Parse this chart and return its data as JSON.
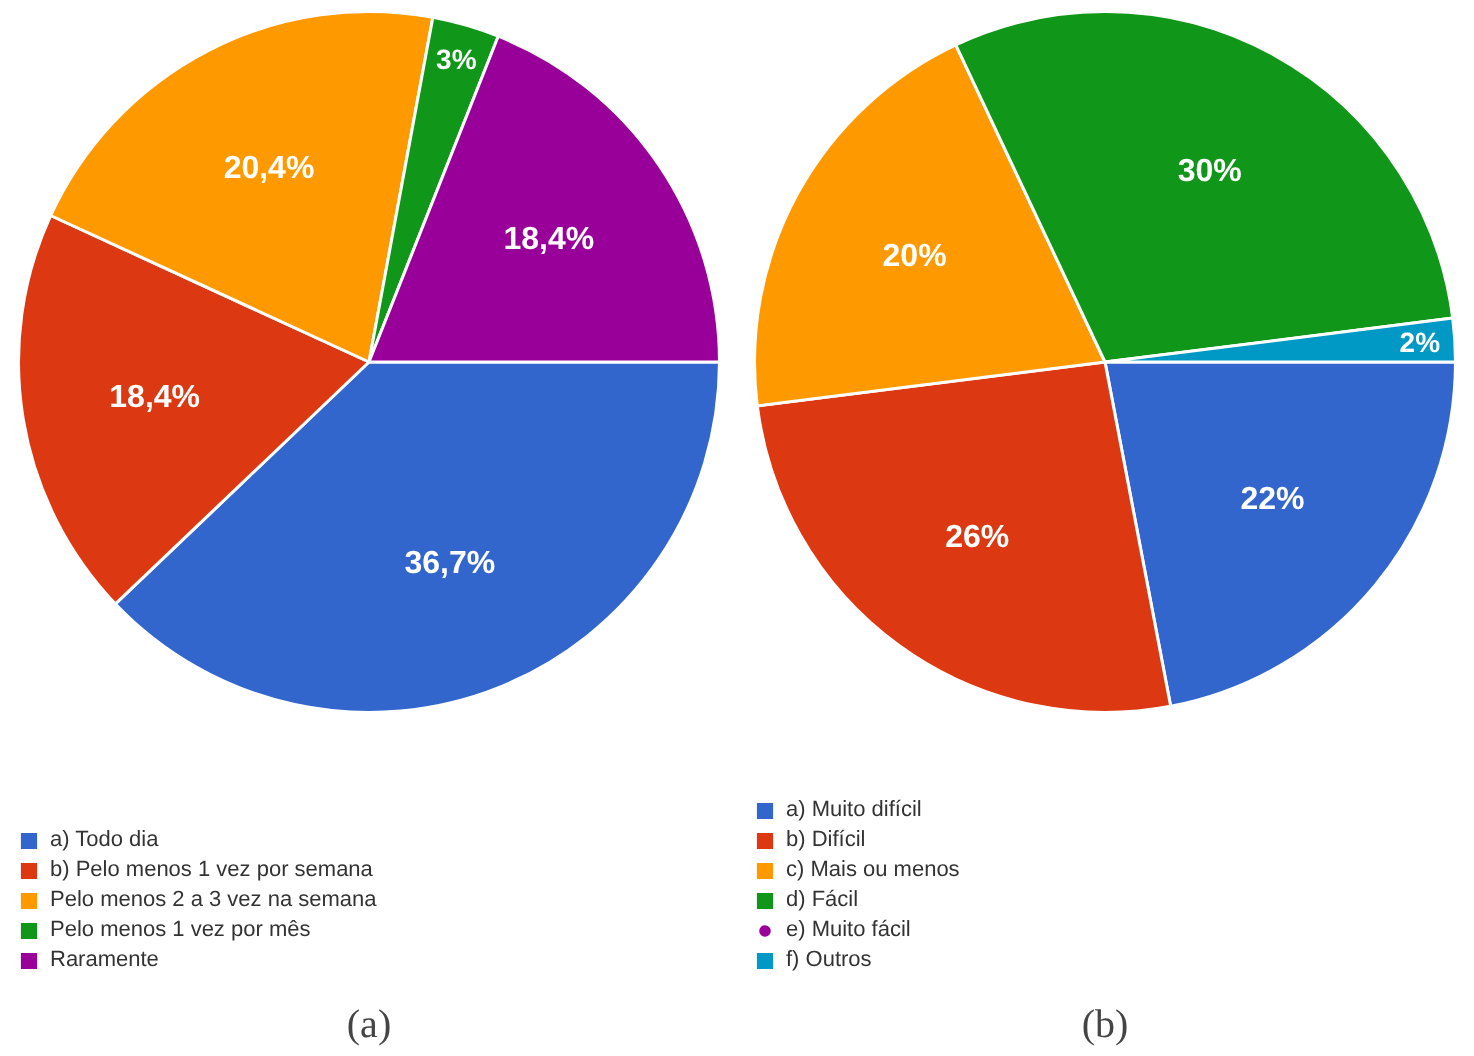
{
  "chart_data": [
    {
      "type": "pie",
      "categories": [
        "a) Todo dia",
        "b) Pelo menos 1 vez por semana",
        "Pelo menos 2 a 3 vez na semana",
        "Pelo menos 1 vez por mês",
        "Raramente"
      ],
      "values": [
        36.7,
        18.4,
        20.4,
        3,
        18.4
      ],
      "value_labels": [
        "36,7%",
        "18,4%",
        "20,4%",
        "3%",
        "18,4%"
      ],
      "colors": [
        "#3366cc",
        "#dc3912",
        "#ff9900",
        "#109618",
        "#990099"
      ],
      "legend": "bottom",
      "annotations": [
        "(a)"
      ]
    },
    {
      "type": "pie",
      "categories": [
        "a) Muito difícil",
        "b) Difícil",
        "c) Mais ou menos",
        "d) Fácil",
        "e) Muito fácil",
        "f) Outros"
      ],
      "values": [
        22,
        26,
        20,
        30,
        0,
        2
      ],
      "value_labels": [
        "22%",
        "26%",
        "20%",
        "30%",
        null,
        "2%"
      ],
      "colors": [
        "#3366cc",
        "#dc3912",
        "#ff9900",
        "#109618",
        "#990099",
        "#0099c6"
      ],
      "legend": "bottom",
      "annotations": [
        "(b)"
      ]
    }
  ]
}
